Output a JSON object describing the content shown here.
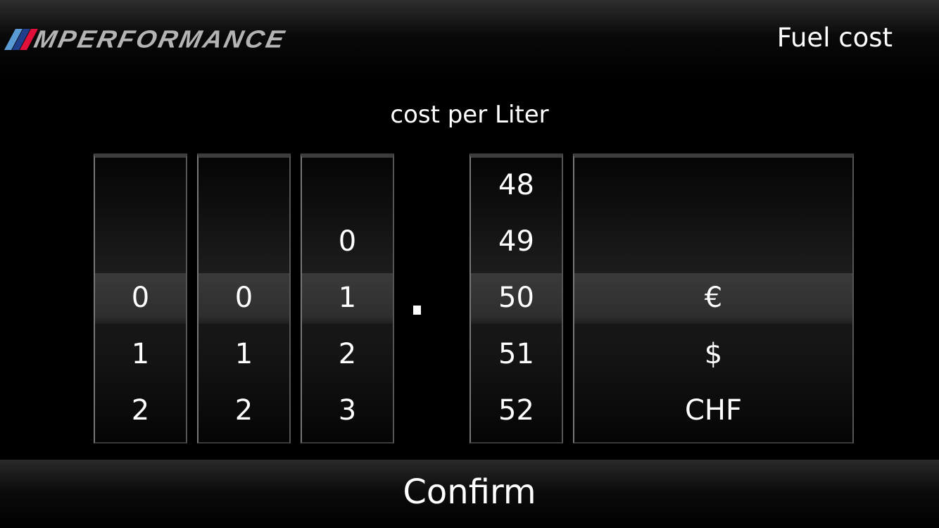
{
  "header": {
    "logo_text": "PERFORMANCE",
    "logo_prefix": "M",
    "logo_stripe_colors": [
      "#5b9bd5",
      "#1f3f8c",
      "#e0103a"
    ],
    "title": "Fuel cost"
  },
  "subtitle": "cost per Liter",
  "decimal_separator": ".",
  "wheels": [
    {
      "name": "digit-hundreds",
      "items": [
        "0",
        "1",
        "2"
      ],
      "selected_index": 0
    },
    {
      "name": "digit-tens",
      "items": [
        "0",
        "1",
        "2"
      ],
      "selected_index": 0
    },
    {
      "name": "digit-ones",
      "items": [
        "0",
        "1",
        "2",
        "3"
      ],
      "selected_index": 1
    },
    {
      "name": "decimals",
      "items": [
        "48",
        "49",
        "50",
        "51",
        "52"
      ],
      "selected_index": 2
    },
    {
      "name": "currency",
      "items": [
        "€",
        "$",
        "CHF"
      ],
      "selected_index": 0
    }
  ],
  "footer": {
    "confirm_label": "Confirm"
  }
}
